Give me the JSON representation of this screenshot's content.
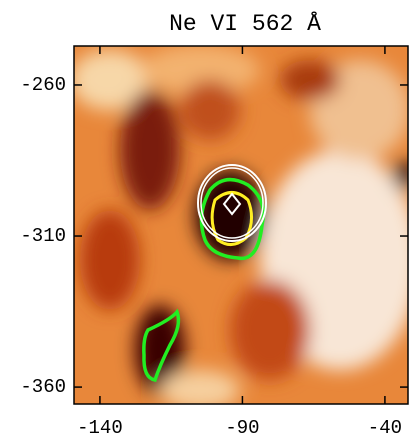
{
  "chart_data": {
    "type": "image",
    "title": "Ne VI 562 Å",
    "xlim": [
      -149.1,
      -31.9
    ],
    "ylim": [
      -365.6,
      -247.1
    ],
    "xticks": [
      -140,
      -90,
      -40
    ],
    "yticks": [
      -260,
      -310,
      -360
    ]
  }
}
